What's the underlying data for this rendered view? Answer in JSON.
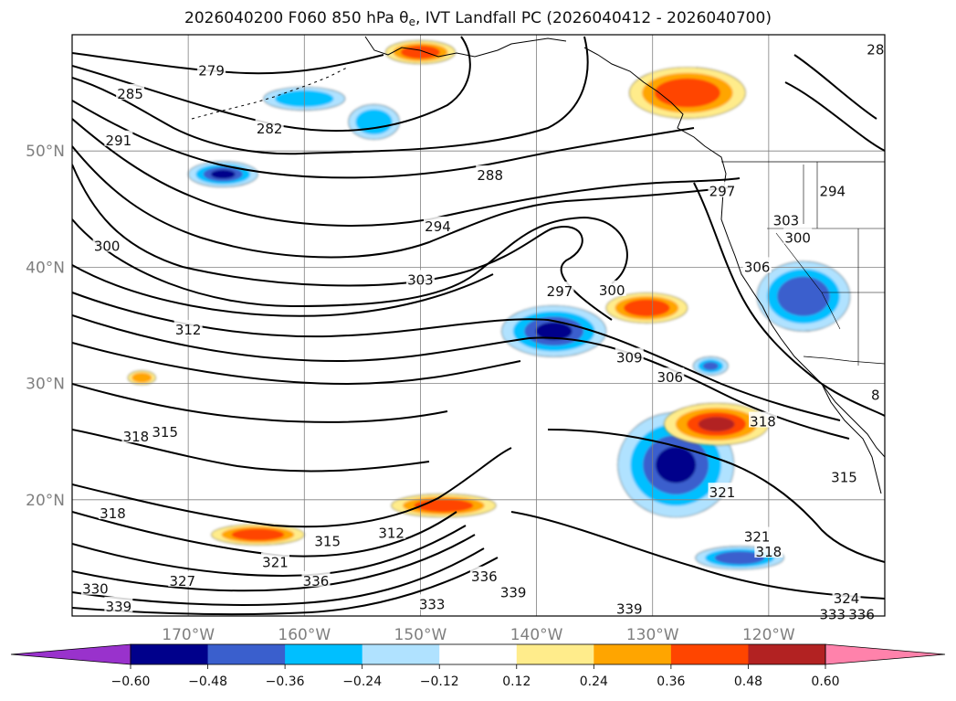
{
  "title": {
    "prefix": "2026040200 F060 850 hPa θ",
    "subscript": "e",
    "suffix": ", IVT Landfall PC (2026040412 - 2026040700)"
  },
  "chart_data": {
    "type": "map-contour",
    "title": "2026040200 F060 850 hPa θe, IVT Landfall PC (2026040412 - 2026040700)",
    "map": {
      "lon_range": [
        -180,
        -110
      ],
      "lat_range": [
        10,
        60
      ],
      "lat_ticks": [
        {
          "value": 20,
          "label": "20°N"
        },
        {
          "value": 30,
          "label": "30°N"
        },
        {
          "value": 40,
          "label": "40°N"
        },
        {
          "value": 50,
          "label": "50°N"
        }
      ],
      "lon_ticks": [
        {
          "value": -170,
          "label": "170°W"
        },
        {
          "value": -160,
          "label": "160°W"
        },
        {
          "value": -150,
          "label": "150°W"
        },
        {
          "value": -140,
          "label": "140°W"
        },
        {
          "value": -130,
          "label": "130°W"
        },
        {
          "value": -120,
          "label": "120°W"
        }
      ],
      "grid": true
    },
    "contour_labels": [
      {
        "text": "279",
        "lon": -168.0,
        "lat": 56.9
      },
      {
        "text": "285",
        "lon": -175.0,
        "lat": 54.9
      },
      {
        "text": "282",
        "lon": -163.0,
        "lat": 51.9
      },
      {
        "text": "291",
        "lon": -176.0,
        "lat": 50.9
      },
      {
        "text": "288",
        "lon": -144.0,
        "lat": 47.9
      },
      {
        "text": "297",
        "lon": -124.0,
        "lat": 46.5
      },
      {
        "text": "294",
        "lon": -148.5,
        "lat": 43.5
      },
      {
        "text": "300",
        "lon": -177.0,
        "lat": 41.8
      },
      {
        "text": "303",
        "lon": -150.0,
        "lat": 38.9
      },
      {
        "text": "297",
        "lon": -138.0,
        "lat": 37.9
      },
      {
        "text": "300",
        "lon": -133.5,
        "lat": 38.0
      },
      {
        "text": "312",
        "lon": -170.0,
        "lat": 34.6
      },
      {
        "text": "309",
        "lon": -132.0,
        "lat": 32.2
      },
      {
        "text": "306",
        "lon": -128.5,
        "lat": 30.5
      },
      {
        "text": "318",
        "lon": -120.5,
        "lat": 26.7
      },
      {
        "text": "318",
        "lon": -174.5,
        "lat": 25.4
      },
      {
        "text": "315",
        "lon": -172.0,
        "lat": 25.8
      },
      {
        "text": "315",
        "lon": -113.5,
        "lat": 21.9
      },
      {
        "text": "321",
        "lon": -124.0,
        "lat": 20.6
      },
      {
        "text": "318",
        "lon": -176.5,
        "lat": 18.8
      },
      {
        "text": "315",
        "lon": -158.0,
        "lat": 16.4
      },
      {
        "text": "312",
        "lon": -152.5,
        "lat": 17.1
      },
      {
        "text": "321",
        "lon": -121.0,
        "lat": 16.8
      },
      {
        "text": "318",
        "lon": -120.0,
        "lat": 15.5
      },
      {
        "text": "321",
        "lon": -162.5,
        "lat": 14.6
      },
      {
        "text": "327",
        "lon": -170.5,
        "lat": 13.0
      },
      {
        "text": "336",
        "lon": -159.0,
        "lat": 13.0
      },
      {
        "text": "336",
        "lon": -144.5,
        "lat": 13.4
      },
      {
        "text": "330",
        "lon": -178.0,
        "lat": 12.3
      },
      {
        "text": "339",
        "lon": -176.0,
        "lat": 10.8
      },
      {
        "text": "339",
        "lon": -142.0,
        "lat": 12.0
      },
      {
        "text": "333",
        "lon": -149.0,
        "lat": 11.0
      },
      {
        "text": "339",
        "lon": -132.0,
        "lat": 10.6
      },
      {
        "text": "324",
        "lon": -113.3,
        "lat": 11.5
      },
      {
        "text": "333",
        "lon": -114.5,
        "lat": 10.1
      },
      {
        "text": "336",
        "lon": -112.0,
        "lat": 10.1
      },
      {
        "text": "28",
        "lon": -110.8,
        "lat": 58.7
      },
      {
        "text": "294",
        "lon": -114.5,
        "lat": 46.5
      },
      {
        "text": "303",
        "lon": -118.5,
        "lat": 44.0
      },
      {
        "text": "300",
        "lon": -117.5,
        "lat": 42.5
      },
      {
        "text": "306",
        "lon": -121.0,
        "lat": 40.0
      },
      {
        "text": "8",
        "lon": -110.8,
        "lat": 29.0
      }
    ],
    "shading": {
      "name": "IVT Landfall PC",
      "bounds": [
        -0.6,
        -0.48,
        -0.36,
        -0.24,
        -0.12,
        0.12,
        0.24,
        0.36,
        0.48,
        0.6
      ],
      "tick_labels": [
        "−0.60",
        "−0.48",
        "−0.36",
        "−0.24",
        "−0.12",
        "0.12",
        "0.24",
        "0.36",
        "0.48",
        "0.60"
      ],
      "colors": [
        "#9932cc",
        "#00008b",
        "#3a5fcd",
        "#00bfff",
        "#b0e2ff",
        "#ffffff",
        "#ffec8b",
        "#ffa500",
        "#ff4500",
        "#b22222",
        "#ff82ab"
      ],
      "extend": "both",
      "blobs": [
        {
          "lon": -138.5,
          "lat": 34.5,
          "rx": 4.5,
          "ry": 2.2,
          "value": -0.5
        },
        {
          "lon": -128.0,
          "lat": 23.0,
          "rx": 5.0,
          "ry": 4.5,
          "value": -0.55
        },
        {
          "lon": -117.0,
          "lat": 37.5,
          "rx": 4.0,
          "ry": 3.0,
          "value": -0.45
        },
        {
          "lon": -122.5,
          "lat": 15.0,
          "rx": 3.8,
          "ry": 1.0,
          "value": -0.45
        },
        {
          "lon": -167.0,
          "lat": 48.0,
          "rx": 3.0,
          "ry": 1.1,
          "value": -0.5
        },
        {
          "lon": -160.0,
          "lat": 54.5,
          "rx": 3.5,
          "ry": 1.0,
          "value": -0.3
        },
        {
          "lon": -154.0,
          "lat": 52.5,
          "rx": 2.2,
          "ry": 1.5,
          "value": -0.3
        },
        {
          "lon": -125.0,
          "lat": 31.5,
          "rx": 1.5,
          "ry": 0.8,
          "value": -0.4
        },
        {
          "lon": -124.5,
          "lat": 26.5,
          "rx": 4.5,
          "ry": 1.8,
          "value": 0.55
        },
        {
          "lon": -130.5,
          "lat": 36.5,
          "rx": 3.5,
          "ry": 1.3,
          "value": 0.45
        },
        {
          "lon": -127.0,
          "lat": 55.0,
          "rx": 5.0,
          "ry": 2.2,
          "value": 0.45
        },
        {
          "lon": -148.0,
          "lat": 19.5,
          "rx": 4.5,
          "ry": 1.0,
          "value": 0.45
        },
        {
          "lon": -164.0,
          "lat": 17.0,
          "rx": 4.0,
          "ry": 0.9,
          "value": 0.42
        },
        {
          "lon": -150.0,
          "lat": 58.5,
          "rx": 3.0,
          "ry": 1.0,
          "value": 0.42
        },
        {
          "lon": -174.0,
          "lat": 30.5,
          "rx": 1.2,
          "ry": 0.6,
          "value": 0.35
        }
      ]
    }
  }
}
